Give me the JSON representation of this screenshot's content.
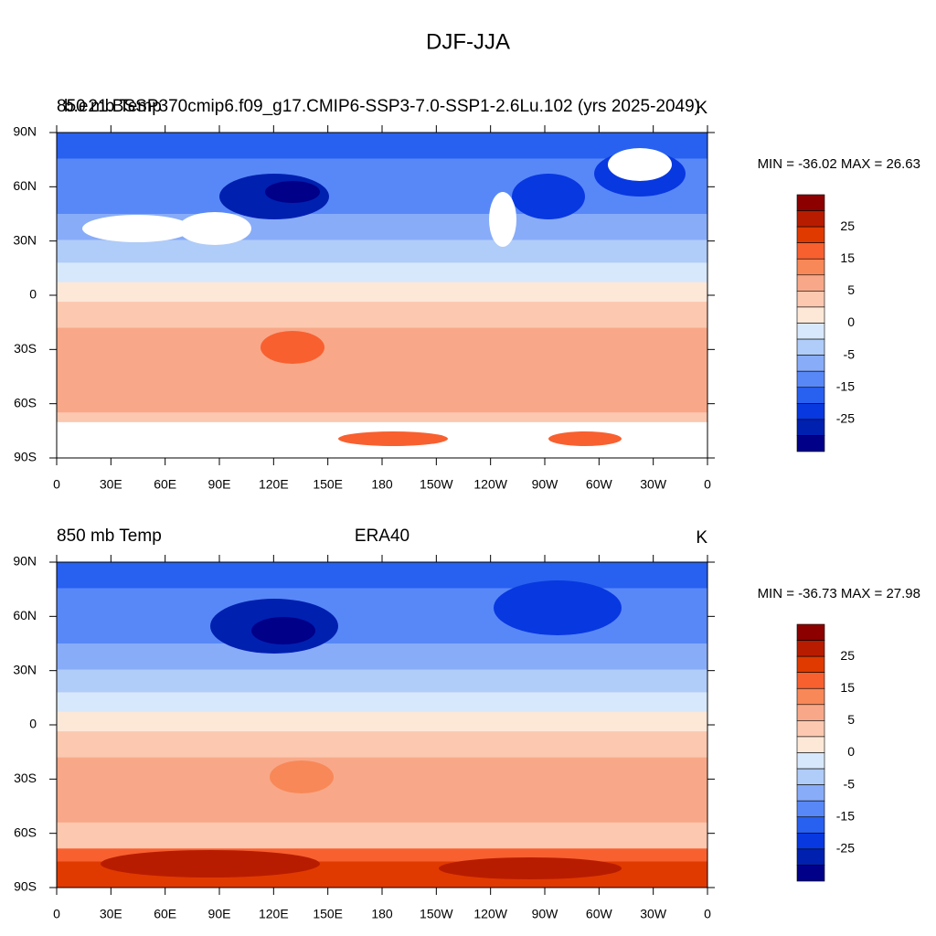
{
  "title": "DJF-JJA",
  "panels": [
    {
      "left": "850 mb Temp",
      "center": "b.e21.BSSP370cmip6.f09_g17.CMIP6-SSP3-7.0-SSP1-2.6Lu.102 (yrs 2025-2049)",
      "right": "K",
      "minmax": "MIN = -36.02 MAX =  26.63"
    },
    {
      "left": "850 mb Temp",
      "center": "ERA40",
      "right": "K",
      "minmax": "MIN = -36.73 MAX =  27.98"
    }
  ],
  "lat_labels": [
    "90N",
    "60N",
    "30N",
    "0",
    "30S",
    "60S",
    "90S"
  ],
  "lon_labels": [
    "0",
    "30E",
    "60E",
    "90E",
    "120E",
    "150E",
    "180",
    "150W",
    "120W",
    "90W",
    "60W",
    "30W",
    "0"
  ],
  "colorbar": {
    "labels": [
      "25",
      "15",
      "5",
      "0",
      "-5",
      "-15",
      "-25"
    ],
    "colors": [
      "#8c0000",
      "#b81c00",
      "#e03a00",
      "#f86030",
      "#f88858",
      "#f8a888",
      "#fcc8b0",
      "#fde8d8",
      "#d8e8fc",
      "#b0ccf8",
      "#88acf8",
      "#5888f8",
      "#2860f0",
      "#0838e0",
      "#0020b0",
      "#000088"
    ]
  }
}
